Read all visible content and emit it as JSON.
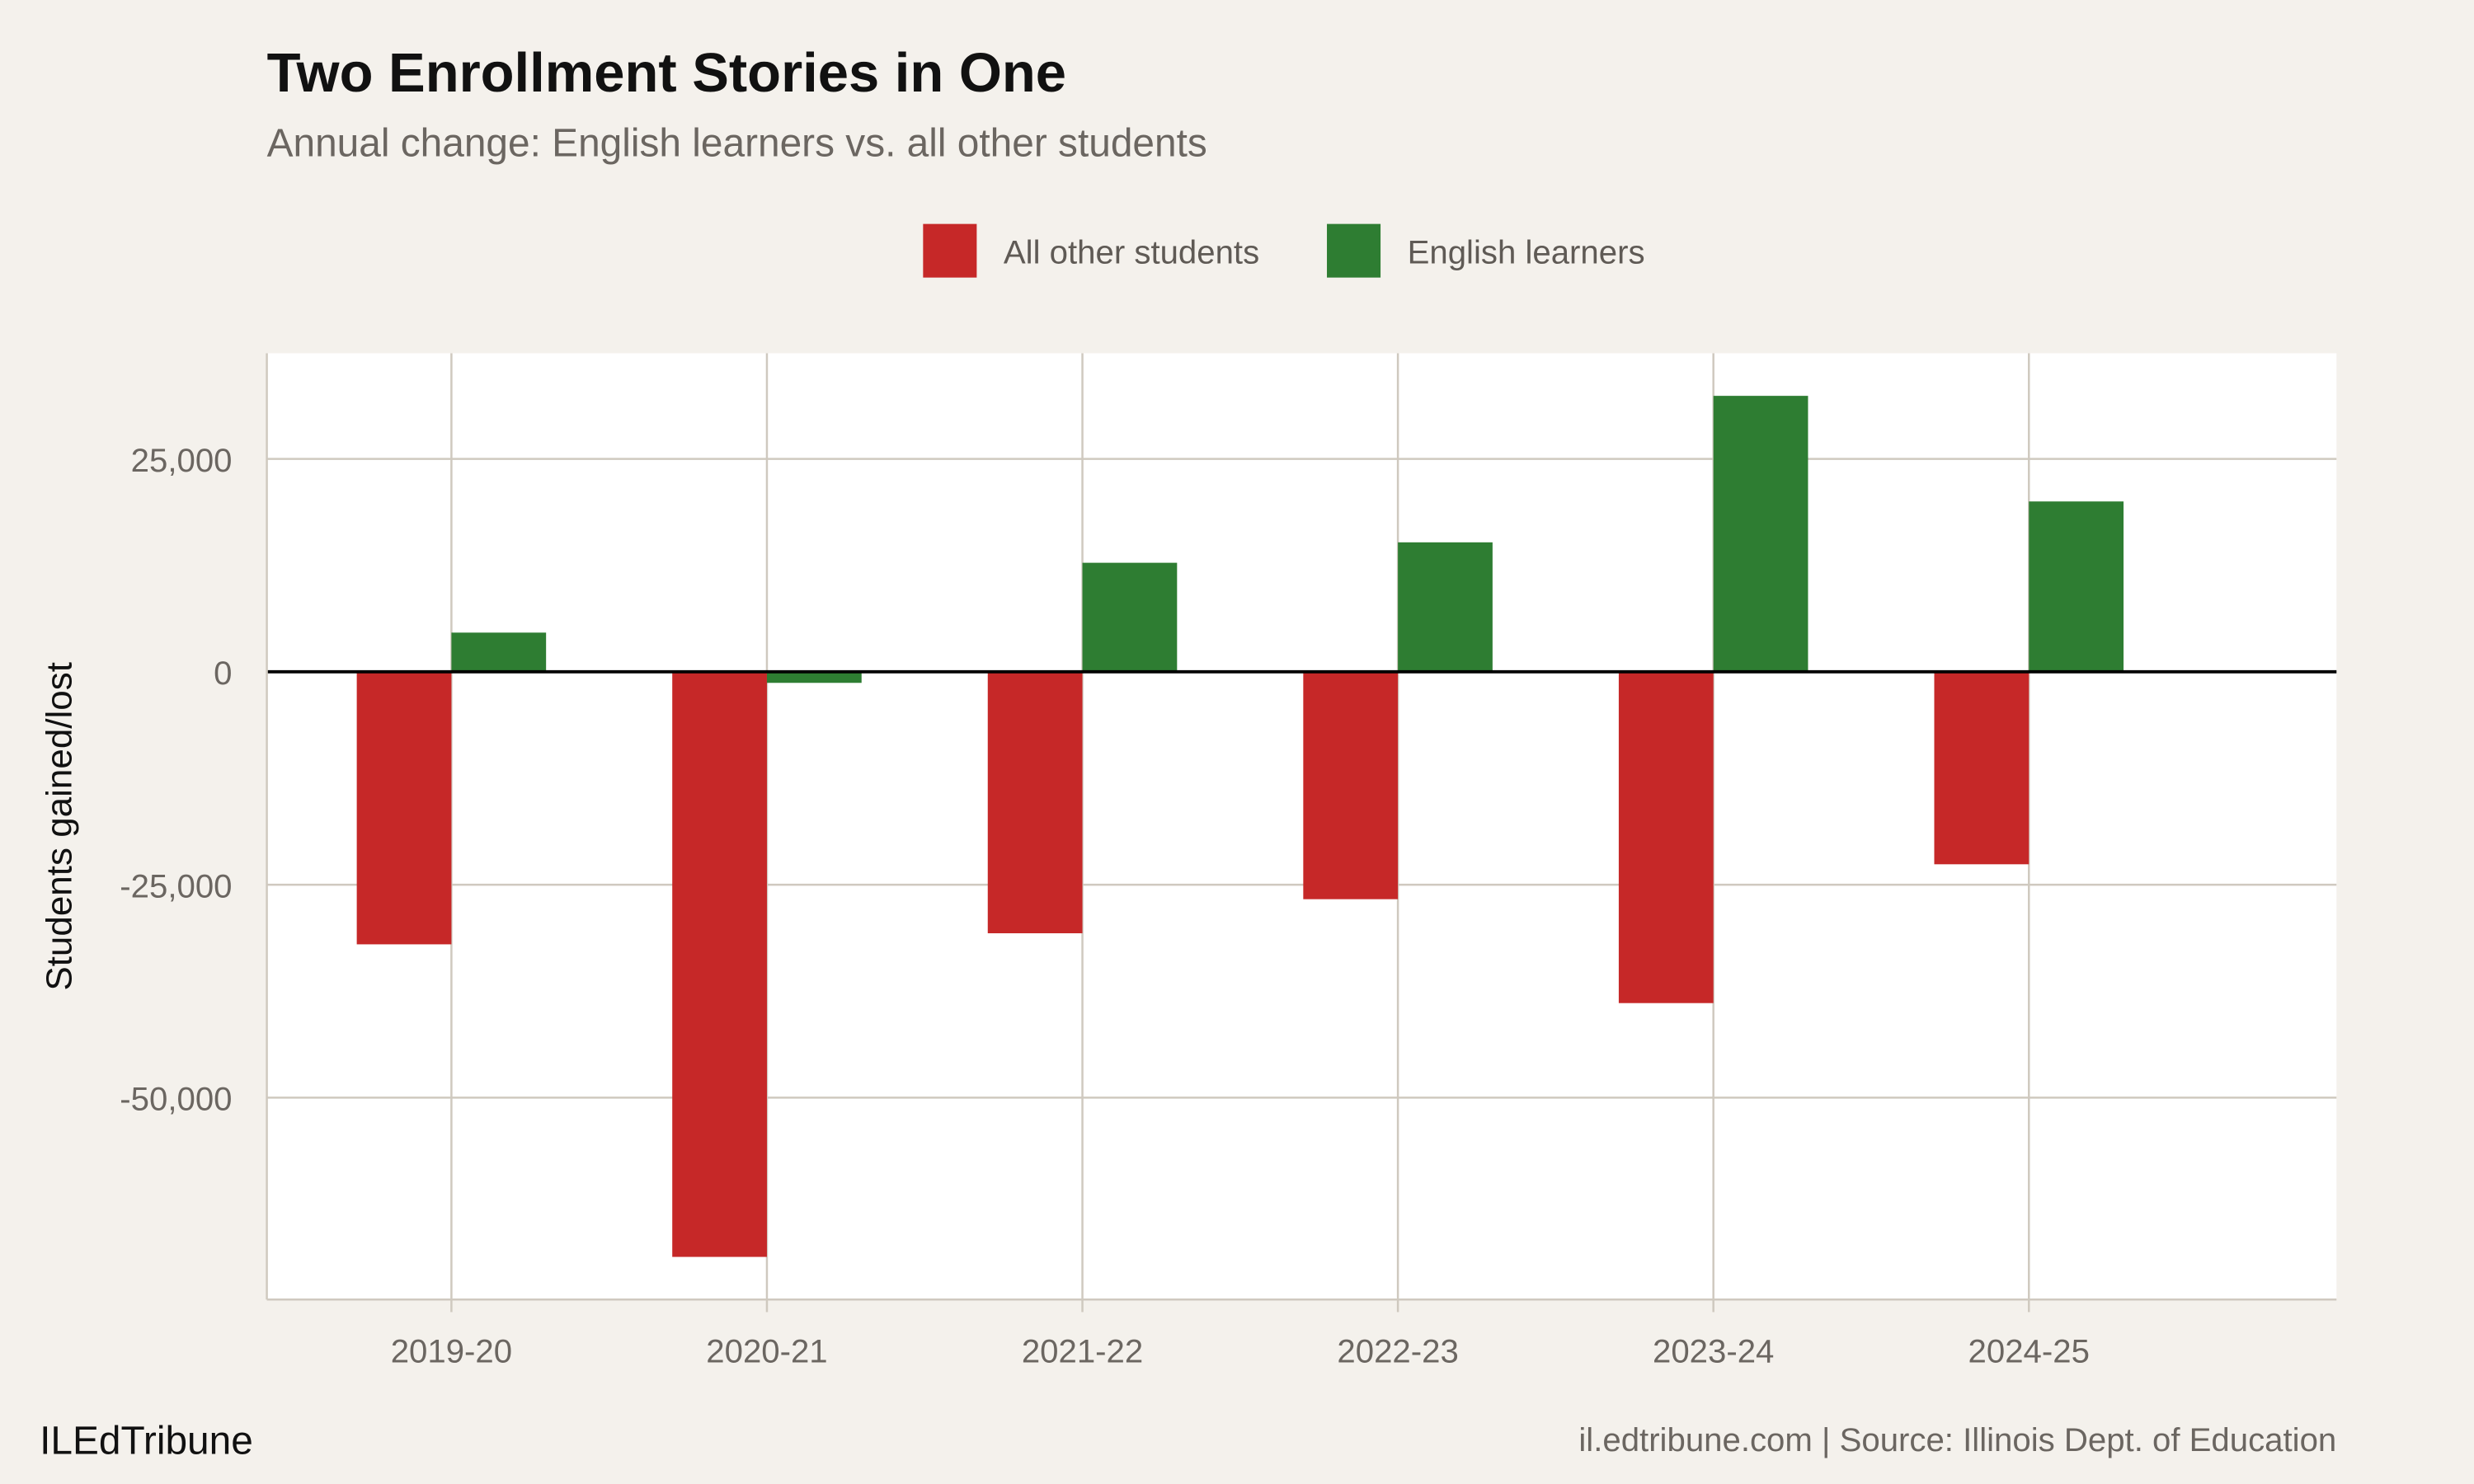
{
  "chart_data": {
    "type": "bar",
    "title": "Two Enrollment Stories in One",
    "subtitle": "Annual change: English learners vs. all other students",
    "xlabel": "",
    "ylabel": "Students gained/lost",
    "categories": [
      "2019-20",
      "2020-21",
      "2021-22",
      "2022-23",
      "2023-24",
      "2024-25"
    ],
    "series": [
      {
        "name": "All other students",
        "color": "#c62828",
        "values": [
          -32000,
          -68700,
          -30700,
          -26700,
          -38900,
          -22600
        ]
      },
      {
        "name": "English learners",
        "color": "#2e7d32",
        "values": [
          4600,
          -1300,
          12800,
          15200,
          32400,
          20000
        ]
      }
    ],
    "ylim": [
      -73700,
      37400
    ],
    "yticks": [
      25000,
      0,
      -25000,
      -50000
    ],
    "ytick_labels": [
      "25,000",
      "0",
      "-25,000",
      "-50,000"
    ],
    "grid": true,
    "legend_position": "top-center",
    "zero_line": true
  },
  "footer": {
    "brand": "ILEdTribune",
    "caption": "il.edtribune.com | Source: Illinois Dept. of Education"
  }
}
